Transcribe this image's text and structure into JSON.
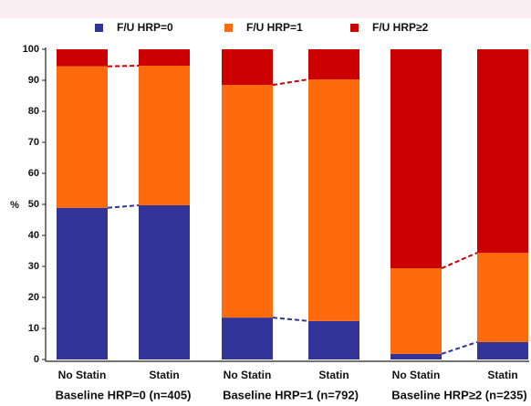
{
  "chart_data": {
    "type": "stacked_bar",
    "ylabel": "%",
    "categories": [
      "No Statin",
      "Statin",
      "No Statin",
      "Statin",
      "No Statin",
      "Statin"
    ],
    "group_labels": [
      "Baseline HRP=0 (n=405)",
      "Baseline HRP=1 (n=792)",
      "Baseline HRP≥2 (n=235)"
    ],
    "series": [
      {
        "name": "F/U HRP=0",
        "color": "#33349a",
        "values": [
          48.9,
          49.7,
          13.5,
          12.4,
          1.8,
          5.6
        ]
      },
      {
        "name": "F/U HRP=1",
        "color": "#ff6a0d",
        "values": [
          45.6,
          45.0,
          75.0,
          77.9,
          27.6,
          28.8
        ]
      },
      {
        "name": "F/U HRP≥2",
        "color": "#cc0000",
        "values": [
          5.5,
          5.3,
          11.5,
          9.7,
          70.6,
          65.6
        ]
      }
    ],
    "ylim": [
      0,
      100
    ],
    "yticks": [
      0,
      10,
      20,
      30,
      40,
      50,
      60,
      70,
      80,
      90,
      100
    ]
  }
}
